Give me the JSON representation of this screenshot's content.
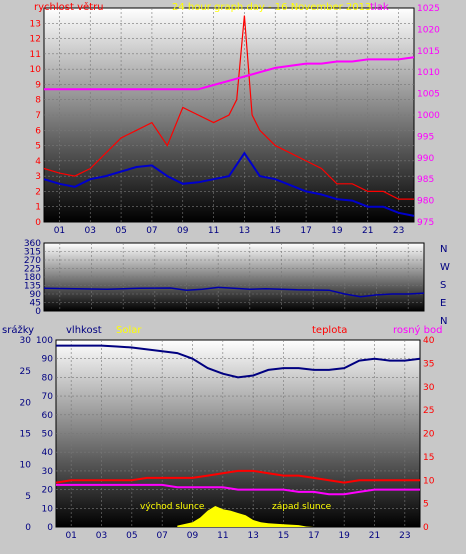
{
  "header": {
    "title": "24 hour graph day - 16 November 2013",
    "left_label": "rychlost větru",
    "right_label": "tlak"
  },
  "colors": {
    "wind": "#ff0000",
    "wind_avg": "#0000cc",
    "pressure": "#ff00ff",
    "direction": "#0000aa",
    "humidity": "#000080",
    "temperature": "#ff0000",
    "dewpoint": "#ff00ff",
    "solar": "#ffff00"
  },
  "x_ticks": [
    "01",
    "03",
    "05",
    "07",
    "09",
    "11",
    "13",
    "15",
    "17",
    "19",
    "21",
    "23"
  ],
  "compass": [
    "N",
    "W",
    "S",
    "E",
    "N"
  ],
  "lower_header": {
    "rain": "srážky",
    "humidity": "vlhkost",
    "solar": "Solar",
    "temperature": "teplota",
    "dewpoint": "rosný bod"
  },
  "annotations": {
    "sunrise": "východ slunce",
    "sunset": "západ slunce"
  },
  "chart_data": [
    {
      "type": "line",
      "title": "24 hour graph day - 16 November 2013",
      "x_unit": "hour",
      "y_left_label": "rychlost větru",
      "y_left_ticks": [
        "0",
        "1",
        "2",
        "3",
        "4",
        "5",
        "6",
        "7",
        "8",
        "9",
        "10",
        "11",
        "12",
        "13"
      ],
      "ylim_left": [
        0,
        14
      ],
      "y_right_label": "tlak",
      "y_right_ticks": [
        "975",
        "980",
        "985",
        "990",
        "995",
        "1000",
        "1005",
        "1010",
        "1015",
        "1020",
        "1025"
      ],
      "ylim_right": [
        975,
        1025
      ],
      "series": [
        {
          "name": "wind_gust",
          "axis": "left",
          "x": [
            0,
            1,
            2,
            3,
            4,
            5,
            6,
            7,
            8,
            9,
            10,
            11,
            12,
            12.5,
            13,
            13.5,
            14,
            15,
            16,
            17,
            18,
            19,
            20,
            21,
            22,
            23,
            24
          ],
          "values": [
            3.5,
            3.2,
            3.0,
            3.5,
            4.5,
            5.5,
            6.0,
            6.5,
            5.0,
            7.5,
            7.0,
            6.5,
            7.0,
            8.0,
            13.5,
            7.0,
            6.0,
            5.0,
            4.5,
            4.0,
            3.5,
            2.5,
            2.5,
            2.0,
            2.0,
            1.5,
            1.5
          ]
        },
        {
          "name": "wind_avg",
          "axis": "left",
          "x": [
            0,
            1,
            2,
            3,
            4,
            5,
            6,
            7,
            8,
            9,
            10,
            11,
            12,
            13,
            14,
            15,
            16,
            17,
            18,
            19,
            20,
            21,
            22,
            23,
            24
          ],
          "values": [
            2.8,
            2.5,
            2.3,
            2.8,
            3.0,
            3.3,
            3.6,
            3.7,
            3.0,
            2.5,
            2.6,
            2.8,
            3.0,
            4.5,
            3.0,
            2.8,
            2.4,
            2.0,
            1.8,
            1.5,
            1.4,
            1.0,
            1.0,
            0.6,
            0.4
          ]
        },
        {
          "name": "pressure",
          "axis": "right",
          "x": [
            0,
            1,
            2,
            3,
            4,
            5,
            6,
            7,
            8,
            9,
            10,
            11,
            12,
            13,
            14,
            15,
            16,
            17,
            18,
            19,
            20,
            21,
            22,
            23,
            24
          ],
          "values": [
            1006,
            1006,
            1006,
            1006,
            1006,
            1006,
            1006,
            1006,
            1006,
            1006,
            1006,
            1007,
            1008,
            1009,
            1010,
            1011,
            1011.5,
            1012,
            1012,
            1012.5,
            1012.5,
            1013,
            1013,
            1013,
            1013.5
          ]
        }
      ]
    },
    {
      "type": "line",
      "title": "",
      "x_unit": "hour",
      "y_ticks": [
        "0",
        "45",
        "90",
        "135",
        "180",
        "225",
        "270",
        "315",
        "360"
      ],
      "ylim": [
        0,
        360
      ],
      "series": [
        {
          "name": "wind_direction",
          "x": [
            0,
            2,
            4,
            6,
            8,
            9,
            10,
            11,
            12,
            13,
            14,
            16,
            18,
            19,
            20,
            21,
            22,
            23,
            24
          ],
          "values": [
            120,
            118,
            115,
            120,
            122,
            110,
            115,
            125,
            120,
            115,
            118,
            112,
            110,
            90,
            75,
            85,
            90,
            90,
            95
          ]
        }
      ]
    },
    {
      "type": "line",
      "title": "",
      "x_unit": "hour",
      "y_left_label": "srážky",
      "y_left_ticks": [
        "0",
        "5",
        "10",
        "15",
        "20",
        "25",
        "30"
      ],
      "y_mid_label": "vlhkost",
      "y_mid_ticks": [
        "0",
        "10",
        "20",
        "30",
        "40",
        "50",
        "60",
        "70",
        "80",
        "90",
        "100"
      ],
      "ylim_mid": [
        0,
        100
      ],
      "y_right_label": "teplota",
      "y_right_ticks": [
        "0",
        "5",
        "10",
        "15",
        "20",
        "25",
        "30",
        "35",
        "40"
      ],
      "ylim_right": [
        0,
        40
      ],
      "series": [
        {
          "name": "humidity",
          "axis": "mid",
          "x": [
            0,
            1,
            2,
            3,
            4,
            5,
            6,
            7,
            8,
            9,
            10,
            11,
            12,
            13,
            14,
            15,
            16,
            17,
            18,
            19,
            20,
            21,
            22,
            23,
            24
          ],
          "values": [
            97,
            97,
            97,
            97,
            96.5,
            96,
            95,
            94,
            93,
            90,
            85,
            82,
            80,
            81,
            84,
            85,
            85,
            84,
            84,
            85,
            89,
            90,
            89,
            89,
            90
          ]
        },
        {
          "name": "temperature",
          "axis": "right",
          "x": [
            0,
            1,
            2,
            3,
            4,
            5,
            6,
            7,
            8,
            9,
            10,
            11,
            12,
            13,
            14,
            15,
            16,
            17,
            18,
            19,
            20,
            21,
            22,
            23,
            24
          ],
          "values": [
            9.5,
            10,
            10,
            10,
            10,
            10,
            10.5,
            10.5,
            10.5,
            10.5,
            11,
            11.5,
            12,
            12,
            11.5,
            11,
            11,
            10.5,
            10,
            9.5,
            10,
            10,
            10,
            10,
            10
          ]
        },
        {
          "name": "dewpoint",
          "axis": "right",
          "x": [
            0,
            1,
            2,
            3,
            4,
            5,
            6,
            7,
            8,
            9,
            10,
            11,
            12,
            13,
            14,
            15,
            16,
            17,
            18,
            19,
            20,
            21,
            22,
            23,
            24
          ],
          "values": [
            9,
            9,
            9,
            9,
            9,
            9,
            9,
            9,
            8.5,
            8.5,
            8.5,
            8.5,
            8,
            8,
            8,
            8,
            7.5,
            7.5,
            7,
            7,
            7.5,
            8,
            8,
            8,
            8
          ]
        },
        {
          "name": "solar",
          "axis": "right",
          "x": [
            8,
            9,
            9.5,
            10,
            10.5,
            11,
            11.5,
            12,
            12.5,
            13,
            13.5,
            14,
            15,
            16,
            16.5,
            17
          ],
          "values": [
            0.3,
            1,
            2,
            3.5,
            4.5,
            3.8,
            3.5,
            3,
            2.5,
            1.5,
            1,
            0.8,
            0.6,
            0.4,
            0.1,
            0
          ]
        }
      ]
    }
  ]
}
